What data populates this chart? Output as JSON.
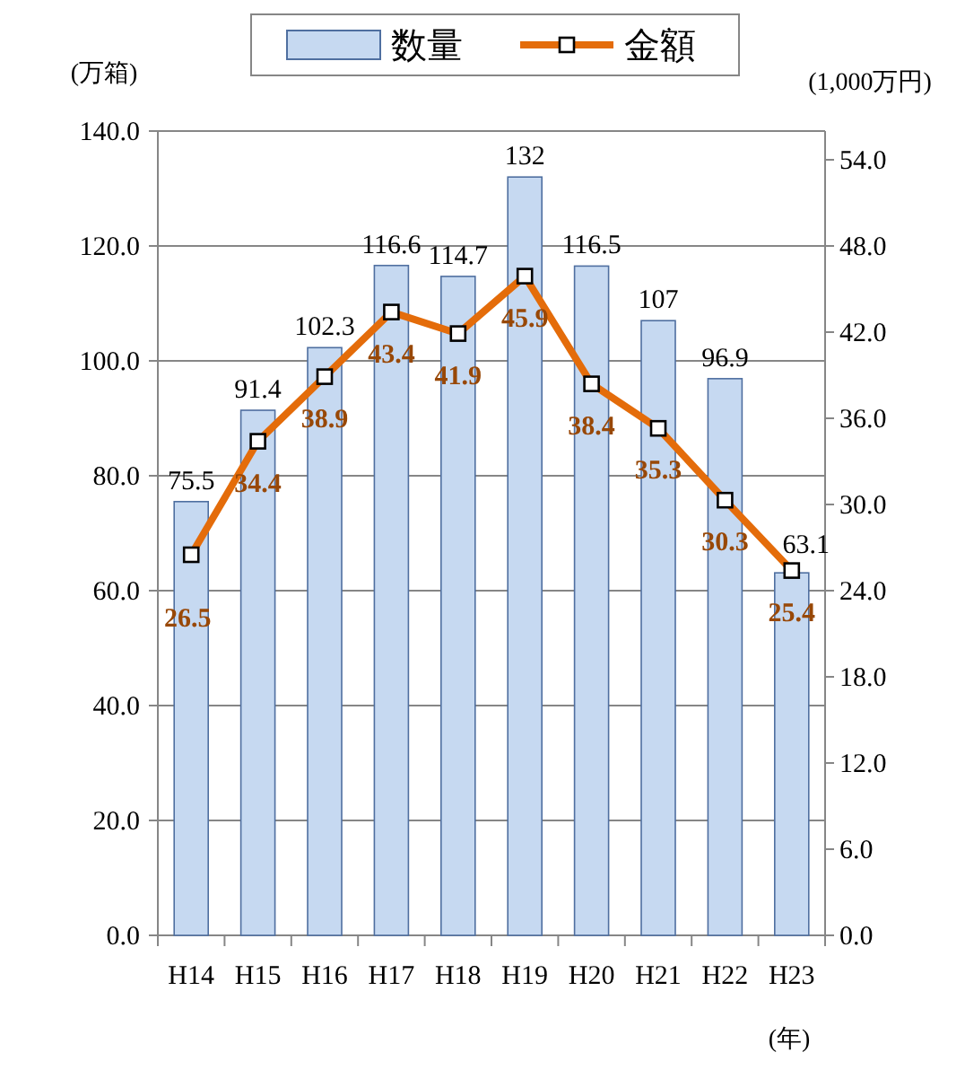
{
  "chart_data": {
    "type": "bar",
    "ylabel": "(万箱)",
    "y2label": "(1,000万円)",
    "xlabel": "(年)",
    "categories": [
      "H14",
      "H15",
      "H16",
      "H17",
      "H18",
      "H19",
      "H20",
      "H21",
      "H22",
      "H23"
    ],
    "series": [
      {
        "name": "数量",
        "color": "#c6d9f1",
        "values": [
          75.5,
          91.4,
          102.3,
          116.6,
          114.7,
          132,
          116.5,
          107,
          96.9,
          63.1
        ]
      },
      {
        "name": "金額",
        "type": "line",
        "axis": "y2",
        "color": "#e46c0a",
        "marker": "square",
        "values": [
          26.5,
          34.4,
          38.9,
          43.4,
          41.9,
          45.9,
          38.4,
          35.3,
          30.3,
          25.4
        ]
      }
    ],
    "ylim": [
      0,
      140
    ],
    "yticks": [
      {
        "value": 0,
        "label": "0.0"
      },
      {
        "value": 20,
        "label": "20.0"
      },
      {
        "value": 40,
        "label": "40.0"
      },
      {
        "value": 60,
        "label": "60.0"
      },
      {
        "value": 80,
        "label": "80.0"
      },
      {
        "value": 100,
        "label": "100.0"
      },
      {
        "value": 120,
        "label": "120.0"
      },
      {
        "value": 140,
        "label": "140.0"
      }
    ],
    "y2lim": [
      0,
      56
    ],
    "y2ticks": [
      {
        "value": 0,
        "label": "0.0"
      },
      {
        "value": 6,
        "label": "6.0"
      },
      {
        "value": 12,
        "label": "12.0"
      },
      {
        "value": 18,
        "label": "18.0"
      },
      {
        "value": 24,
        "label": "24.0"
      },
      {
        "value": 30,
        "label": "30.0"
      },
      {
        "value": 36,
        "label": "36.0"
      },
      {
        "value": 42,
        "label": "42.0"
      },
      {
        "value": 48,
        "label": "48.0"
      },
      {
        "value": 54,
        "label": "54.0"
      }
    ],
    "grid": "y",
    "legend": "top",
    "data_labels": true
  }
}
